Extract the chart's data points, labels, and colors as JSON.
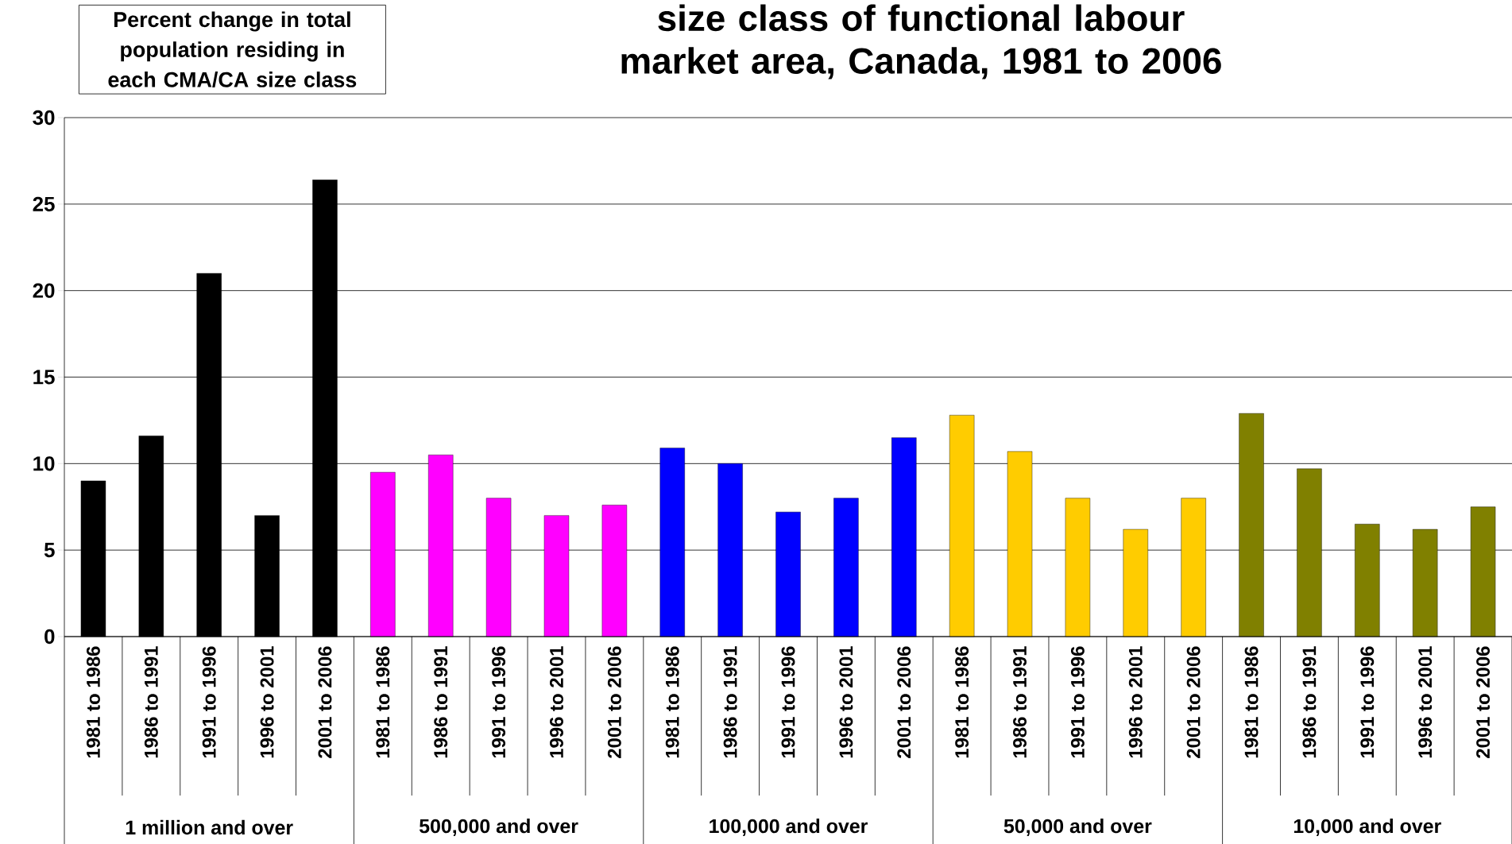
{
  "chart_data": {
    "type": "bar",
    "title": "size class of functional labour market area, Canada, 1981 to 2006",
    "ylabel": "Percent change in total population residing in each CMA/CA size class",
    "categories": [
      "1981 to 1986",
      "1986 to 1991",
      "1991 to 1996",
      "1996 to 2001",
      "2001 to 2006",
      "1981 to 1986",
      "1986 to 1991",
      "1991 to 1996",
      "1996 to 2001",
      "2001 to 2006",
      "1981 to 1986",
      "1986 to 1991",
      "1991 to 1996",
      "1996 to 2001",
      "2001 to 2006",
      "1981 to 1986",
      "1986 to 1991",
      "1991 to 1996",
      "1996 to 2001",
      "2001 to 2006",
      "1981 to 1986",
      "1986 to 1991",
      "1991 to 1996",
      "1996 to 2001",
      "2001 to 2006"
    ],
    "values": [
      9.0,
      11.6,
      21.0,
      7.0,
      26.4,
      9.5,
      10.5,
      8.0,
      7.0,
      7.6,
      10.9,
      10.0,
      7.2,
      8.0,
      11.5,
      12.8,
      10.7,
      8.0,
      6.2,
      8.0,
      12.9,
      9.7,
      6.5,
      6.2,
      7.5
    ],
    "colors": [
      "#000000",
      "#000000",
      "#000000",
      "#000000",
      "#000000",
      "#ff00ff",
      "#ff00ff",
      "#ff00ff",
      "#ff00ff",
      "#ff00ff",
      "#0000ff",
      "#0000ff",
      "#0000ff",
      "#0000ff",
      "#0000ff",
      "#ffcc00",
      "#ffcc00",
      "#ffcc00",
      "#ffcc00",
      "#ffcc00",
      "#808000",
      "#808000",
      "#808000",
      "#808000",
      "#808000"
    ],
    "annotations": [
      "1 million and over",
      "500,000 and over",
      "100,000 and over",
      "50,000 and over",
      "10,000 and over"
    ],
    "ylim": [
      0,
      30
    ],
    "yticks": [
      0,
      5,
      10,
      15,
      20,
      25,
      30
    ],
    "grid": "y"
  }
}
